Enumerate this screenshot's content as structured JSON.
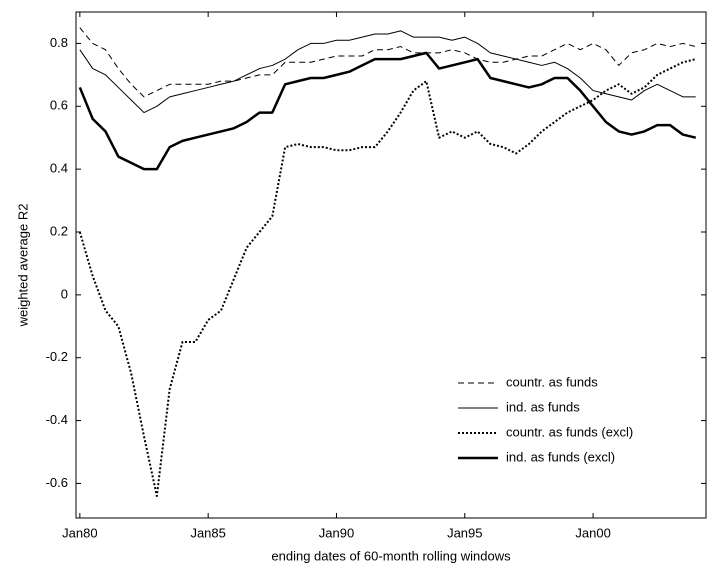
{
  "chart_data": {
    "type": "line",
    "xlabel": "ending dates of 60-month rolling windows",
    "ylabel": "weighted average R2",
    "x": [
      1980,
      1980.5,
      1981,
      1981.5,
      1982,
      1982.5,
      1983,
      1983.5,
      1984,
      1984.5,
      1985,
      1985.5,
      1986,
      1986.5,
      1987,
      1987.5,
      1988,
      1988.5,
      1989,
      1989.5,
      1990,
      1990.5,
      1991,
      1991.5,
      1992,
      1992.5,
      1993,
      1993.5,
      1994,
      1994.5,
      1995,
      1995.5,
      1996,
      1996.5,
      1997,
      1997.5,
      1998,
      1998.5,
      1999,
      1999.5,
      2000,
      2000.5,
      2001,
      2001.5,
      2002,
      2002.5,
      2003,
      2003.5,
      2004
    ],
    "series": [
      {
        "name": "countr. as funds",
        "color": "#000000",
        "dash": "dashed",
        "width": 1,
        "values": [
          0.85,
          0.8,
          0.78,
          0.72,
          0.67,
          0.63,
          0.65,
          0.67,
          0.67,
          0.67,
          0.67,
          0.68,
          0.68,
          0.69,
          0.7,
          0.7,
          0.74,
          0.74,
          0.74,
          0.75,
          0.76,
          0.76,
          0.76,
          0.78,
          0.78,
          0.79,
          0.77,
          0.77,
          0.77,
          0.78,
          0.77,
          0.75,
          0.74,
          0.74,
          0.75,
          0.76,
          0.76,
          0.78,
          0.8,
          0.78,
          0.8,
          0.78,
          0.73,
          0.77,
          0.78,
          0.8,
          0.79,
          0.8,
          0.79
        ]
      },
      {
        "name": "ind. as funds",
        "color": "#000000",
        "dash": "solid",
        "width": 1,
        "values": [
          0.78,
          0.72,
          0.7,
          0.66,
          0.62,
          0.58,
          0.6,
          0.63,
          0.64,
          0.65,
          0.66,
          0.67,
          0.68,
          0.7,
          0.72,
          0.73,
          0.75,
          0.78,
          0.8,
          0.8,
          0.81,
          0.81,
          0.82,
          0.83,
          0.83,
          0.84,
          0.82,
          0.82,
          0.82,
          0.81,
          0.82,
          0.8,
          0.77,
          0.76,
          0.75,
          0.74,
          0.73,
          0.74,
          0.72,
          0.69,
          0.65,
          0.64,
          0.63,
          0.62,
          0.65,
          0.67,
          0.65,
          0.63,
          0.63
        ]
      },
      {
        "name": "countr. as funds (excl)",
        "color": "#000000",
        "dash": "dotted",
        "width": 2,
        "values": [
          0.2,
          0.06,
          -0.05,
          -0.1,
          -0.25,
          -0.45,
          -0.64,
          -0.3,
          -0.15,
          -0.15,
          -0.08,
          -0.05,
          0.05,
          0.15,
          0.2,
          0.25,
          0.47,
          0.48,
          0.47,
          0.47,
          0.46,
          0.46,
          0.47,
          0.47,
          0.52,
          0.58,
          0.65,
          0.68,
          0.5,
          0.52,
          0.5,
          0.52,
          0.48,
          0.47,
          0.45,
          0.48,
          0.52,
          0.55,
          0.58,
          0.6,
          0.62,
          0.65,
          0.67,
          0.64,
          0.66,
          0.7,
          0.72,
          0.74,
          0.75
        ]
      },
      {
        "name": "ind. as funds (excl)",
        "color": "#000000",
        "dash": "solid",
        "width": 2.5,
        "values": [
          0.66,
          0.56,
          0.52,
          0.44,
          0.42,
          0.4,
          0.4,
          0.47,
          0.49,
          0.5,
          0.51,
          0.52,
          0.53,
          0.55,
          0.58,
          0.58,
          0.67,
          0.68,
          0.69,
          0.69,
          0.7,
          0.71,
          0.73,
          0.75,
          0.75,
          0.75,
          0.76,
          0.77,
          0.72,
          0.73,
          0.74,
          0.75,
          0.69,
          0.68,
          0.67,
          0.66,
          0.67,
          0.69,
          0.69,
          0.65,
          0.6,
          0.55,
          0.52,
          0.51,
          0.52,
          0.54,
          0.54,
          0.51,
          0.5
        ]
      }
    ],
    "xlim": [
      1979.85,
      2004.4
    ],
    "xticks": [
      {
        "value": 1980,
        "label": "Jan80"
      },
      {
        "value": 1985,
        "label": "Jan85"
      },
      {
        "value": 1990,
        "label": "Jan90"
      },
      {
        "value": 1995,
        "label": "Jan95"
      },
      {
        "value": 2000,
        "label": "Jan00"
      }
    ],
    "ylim": [
      -0.71,
      0.9
    ],
    "yticks": [
      -0.6,
      -0.4,
      -0.2,
      0,
      0.2,
      0.4,
      0.6,
      0.8
    ],
    "legend": "lower right"
  }
}
